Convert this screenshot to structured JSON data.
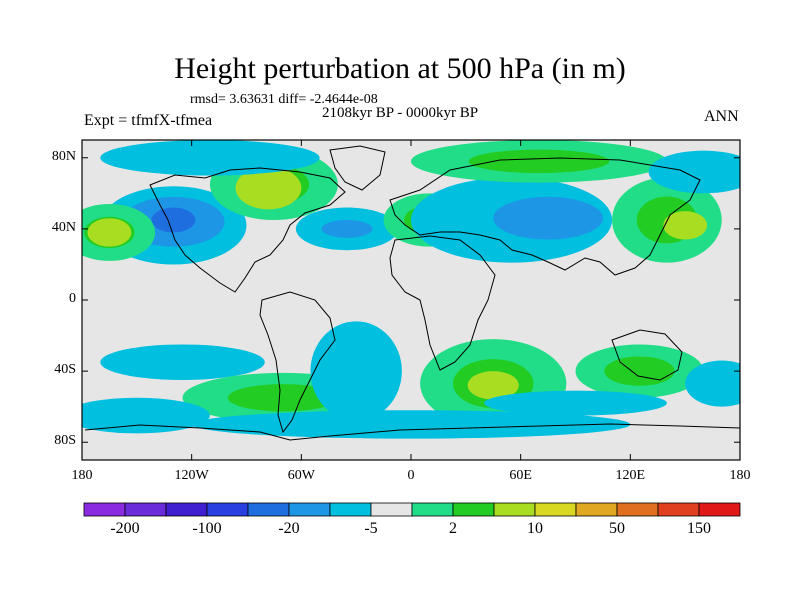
{
  "title": "Height perturbation at 500 hPa (in m)",
  "stats": "rmsd= 3.63631 diff= -2.4644e-08",
  "period": "2108kyr BP - 0000kyr BP",
  "experiment": "Expt = tfmfX-tfmea",
  "season": "ANN",
  "map": {
    "lon_range": [
      -180,
      180
    ],
    "lat_range": [
      -90,
      90
    ],
    "lat_ticks": [
      {
        "label": "80N",
        "lat": 80
      },
      {
        "label": "40N",
        "lat": 40
      },
      {
        "label": "0",
        "lat": 0
      },
      {
        "label": "40S",
        "lat": -40
      },
      {
        "label": "80S",
        "lat": -80
      }
    ],
    "lon_ticks": [
      {
        "label": "180",
        "lon": -180
      },
      {
        "label": "120W",
        "lon": -120
      },
      {
        "label": "60W",
        "lon": -60
      },
      {
        "label": "0",
        "lon": 0
      },
      {
        "label": "60E",
        "lon": 60
      },
      {
        "label": "120E",
        "lon": 120
      },
      {
        "label": "180",
        "lon": 180
      }
    ]
  },
  "colorbar": {
    "colors": [
      "#8a2be2",
      "#6a2bd8",
      "#3f1fd0",
      "#2a3fe0",
      "#1e6ee0",
      "#1e96e6",
      "#00bfdf",
      "#e6e6e6",
      "#22dd88",
      "#22cc22",
      "#a8dd22",
      "#d8d822",
      "#e0a820",
      "#e07020",
      "#e04020",
      "#e01818"
    ],
    "labels": [
      {
        "text": "-200",
        "index": 1
      },
      {
        "text": "-100",
        "index": 3
      },
      {
        "text": "-20",
        "index": 5
      },
      {
        "text": "-5",
        "index": 7
      },
      {
        "text": "2",
        "index": 9
      },
      {
        "text": "10",
        "index": 11
      },
      {
        "text": "50",
        "index": 13
      },
      {
        "text": "150",
        "index": 15
      }
    ]
  },
  "field_blobs": [
    {
      "lon": -130,
      "lat": 42,
      "rlon": 40,
      "rlat": 22,
      "level": -5
    },
    {
      "lon": -130,
      "lat": 44,
      "rlon": 28,
      "rlat": 14,
      "level": -20
    },
    {
      "lon": -130,
      "lat": 45,
      "rlon": 12,
      "rlat": 7,
      "level": -100
    },
    {
      "lon": -165,
      "lat": 38,
      "rlon": 25,
      "rlat": 16,
      "level": 10
    },
    {
      "lon": -165,
      "lat": 38,
      "rlon": 12,
      "rlat": 8,
      "level": 50
    },
    {
      "lon": -75,
      "lat": 65,
      "rlon": 35,
      "rlat": 20,
      "level": 10
    },
    {
      "lon": -78,
      "lat": 63,
      "rlon": 18,
      "rlat": 12,
      "level": 50
    },
    {
      "lon": -110,
      "lat": 80,
      "rlon": 60,
      "rlat": 10,
      "level": -5
    },
    {
      "lon": -35,
      "lat": 40,
      "rlon": 28,
      "rlat": 12,
      "level": -5
    },
    {
      "lon": -35,
      "lat": 40,
      "rlon": 14,
      "rlat": 5,
      "level": -20
    },
    {
      "lon": 10,
      "lat": 45,
      "rlon": 25,
      "rlat": 15,
      "level": 10
    },
    {
      "lon": 55,
      "lat": 45,
      "rlon": 55,
      "rlat": 24,
      "level": -5
    },
    {
      "lon": 75,
      "lat": 46,
      "rlon": 30,
      "rlat": 12,
      "level": -20
    },
    {
      "lon": 70,
      "lat": 78,
      "rlon": 70,
      "rlat": 12,
      "level": 10
    },
    {
      "lon": 140,
      "lat": 45,
      "rlon": 30,
      "rlat": 24,
      "level": 10
    },
    {
      "lon": 150,
      "lat": 42,
      "rlon": 12,
      "rlat": 8,
      "level": 50
    },
    {
      "lon": 160,
      "lat": 72,
      "rlon": 30,
      "rlat": 12,
      "level": -5
    },
    {
      "lon": -125,
      "lat": -35,
      "rlon": 45,
      "rlat": 10,
      "level": -5
    },
    {
      "lon": -70,
      "lat": -55,
      "rlon": 55,
      "rlat": 14,
      "level": 10
    },
    {
      "lon": -30,
      "lat": -40,
      "rlon": 25,
      "rlat": 28,
      "level": -5
    },
    {
      "lon": 45,
      "lat": -47,
      "rlon": 40,
      "rlat": 25,
      "level": 10
    },
    {
      "lon": 45,
      "lat": -48,
      "rlon": 14,
      "rlat": 8,
      "level": 50
    },
    {
      "lon": 125,
      "lat": -40,
      "rlon": 35,
      "rlat": 15,
      "level": 10
    },
    {
      "lon": 170,
      "lat": -47,
      "rlon": 20,
      "rlat": 13,
      "level": -5
    },
    {
      "lon": 0,
      "lat": -70,
      "rlon": 120,
      "rlat": 8,
      "level": -5
    },
    {
      "lon": -150,
      "lat": -65,
      "rlon": 40,
      "rlat": 10,
      "level": -5
    },
    {
      "lon": 90,
      "lat": -58,
      "rlon": 50,
      "rlat": 7,
      "level": -5
    }
  ]
}
